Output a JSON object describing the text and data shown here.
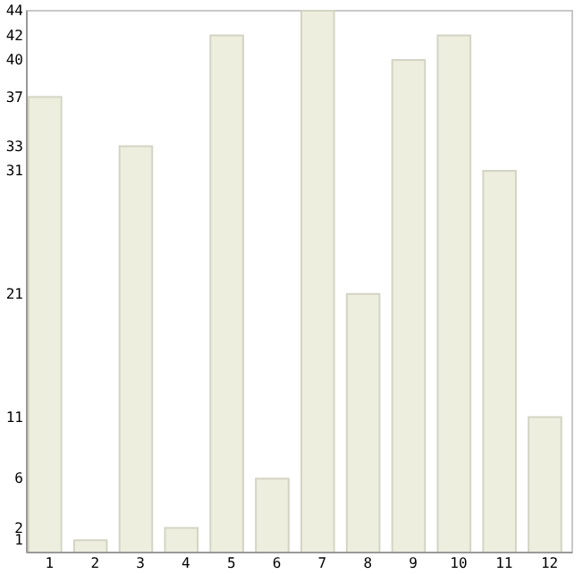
{
  "chart_data": {
    "type": "bar",
    "categories": [
      "1",
      "2",
      "3",
      "4",
      "5",
      "6",
      "7",
      "8",
      "9",
      "10",
      "11",
      "12"
    ],
    "values": [
      37,
      1,
      33,
      2,
      42,
      6,
      44,
      21,
      40,
      42,
      31,
      11
    ],
    "color": "#eeeedf",
    "ylim": [
      0,
      44
    ],
    "yticks": [
      1,
      2,
      6,
      11,
      21,
      31,
      33,
      37,
      40,
      42,
      44
    ]
  }
}
